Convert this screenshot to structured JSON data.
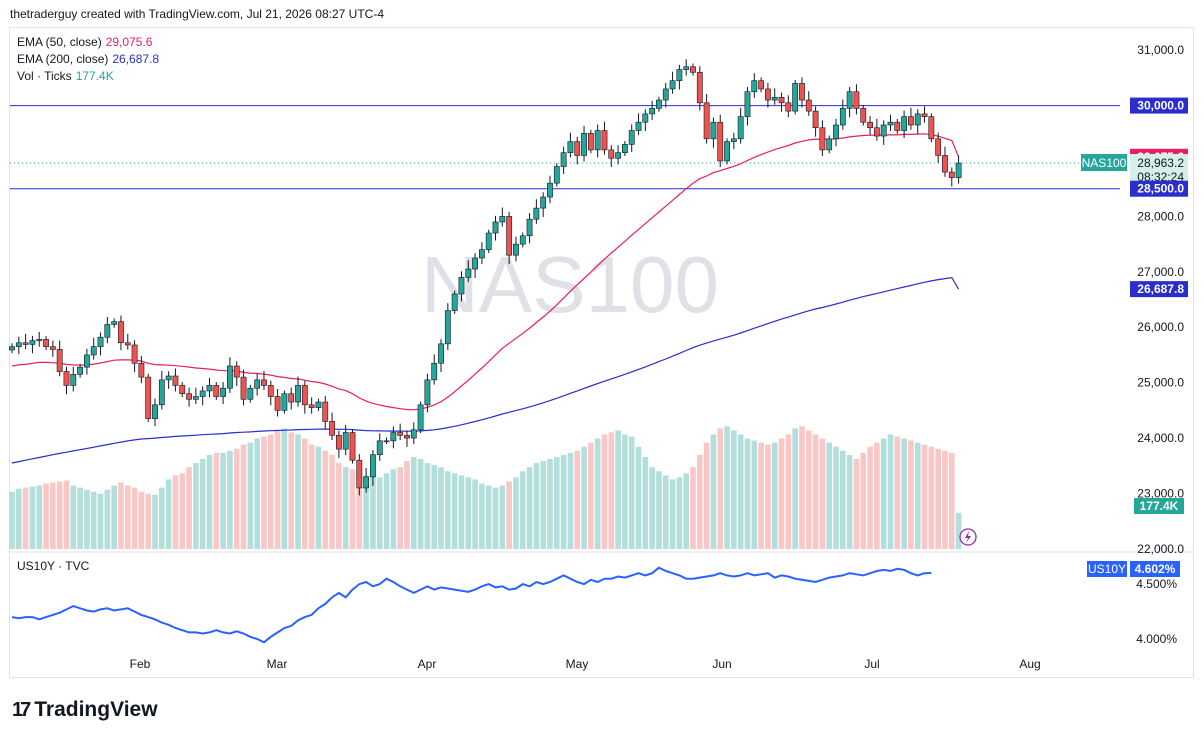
{
  "header": {
    "attribution": "thetraderguy created with TradingView.com, Jul 21, 2026 08:27 UTC-4"
  },
  "legend": [
    {
      "label": "EMA (50, close)",
      "value": "29,075.6",
      "color": "#e91e63"
    },
    {
      "label": "EMA (200, close)",
      "value": "26,687.8",
      "color": "#2a2ecd"
    },
    {
      "label": "Vol · Ticks",
      "value": "177.4K",
      "color": "#26a69a"
    }
  ],
  "lower_legend": {
    "label": "US10Y · TVC"
  },
  "watermark": "NAS100",
  "brand": {
    "logo": "17",
    "name": "TradingView"
  },
  "colors": {
    "up": "#26a69a",
    "down": "#ef5350",
    "ema50": "#e91e63",
    "ema200": "#2a2ecd",
    "hline": "#2a2ecd",
    "vol_up": "#b2dfdb",
    "vol_down": "#f8c7c6",
    "us10y": "#2962ff"
  },
  "chart_data": {
    "type": "candlestick",
    "symbol": "NAS100",
    "x_ticks": [
      "Feb",
      "Mar",
      "Apr",
      "May",
      "Jun",
      "Jul",
      "Aug"
    ],
    "y_ticks": [
      "31,000.0",
      "28,000.0",
      "27,000.0",
      "26,000.0",
      "25,000.0",
      "24,000.0",
      "23,000.0",
      "22,000.0"
    ],
    "y_range": [
      21980,
      31400
    ],
    "horizontal_lines": [
      30000,
      28500
    ],
    "price_labels": [
      {
        "text": "30,000.0",
        "value": 30000,
        "kind": "hline"
      },
      {
        "text": "29,075.6",
        "value": 29075.6,
        "kind": "ema50"
      },
      {
        "text": "28,963.2",
        "value": 28963.2,
        "kind": "last",
        "symbol_tag": "NAS100",
        "countdown": "08:32:24"
      },
      {
        "text": "28,500.0",
        "value": 28500,
        "kind": "hline"
      },
      {
        "text": "26,687.8",
        "value": 26687.8,
        "kind": "ema200"
      },
      {
        "text": "177.4K",
        "kind": "volume"
      }
    ],
    "closes": [
      25650,
      25720,
      25690,
      25760,
      25780,
      25650,
      25600,
      25200,
      24950,
      25150,
      25280,
      25500,
      25650,
      25820,
      26050,
      26100,
      25720,
      25680,
      25350,
      25100,
      24350,
      24600,
      25050,
      25120,
      24950,
      24800,
      24700,
      24750,
      24850,
      24950,
      24750,
      24900,
      25300,
      25100,
      24700,
      24900,
      25050,
      24950,
      24750,
      24500,
      24800,
      24650,
      24950,
      24600,
      24550,
      24650,
      24300,
      24050,
      23800,
      24100,
      23600,
      23100,
      23300,
      23700,
      23950,
      23950,
      24100,
      24050,
      24000,
      24150,
      24600,
      25050,
      25350,
      25700,
      26300,
      26600,
      26900,
      27050,
      27250,
      27400,
      27700,
      27900,
      28000,
      27300,
      27500,
      27650,
      27950,
      28150,
      28350,
      28600,
      28900,
      29150,
      29350,
      29100,
      29500,
      29200,
      29550,
      29200,
      29050,
      29150,
      29300,
      29550,
      29700,
      29850,
      29950,
      30100,
      30300,
      30450,
      30650,
      30700,
      30600,
      30050,
      29400,
      29700,
      29000,
      29350,
      29400,
      29800,
      30250,
      30450,
      30300,
      30100,
      30150,
      30050,
      29900,
      30400,
      30100,
      29900,
      29600,
      29200,
      29400,
      29650,
      29950,
      30250,
      29950,
      29700,
      29600,
      29450,
      29650,
      29700,
      29550,
      29800,
      29650,
      29850,
      29800,
      29400,
      29100,
      28800,
      28700,
      28963
    ],
    "ema50": [
      25300,
      25320,
      25330,
      25350,
      25365,
      25365,
      25360,
      25350,
      25330,
      25320,
      25315,
      25320,
      25335,
      25355,
      25380,
      25405,
      25410,
      25410,
      25405,
      25390,
      25350,
      25325,
      25320,
      25315,
      25305,
      25295,
      25280,
      25265,
      25255,
      25245,
      25228,
      25215,
      25215,
      25210,
      25185,
      25172,
      25165,
      25155,
      25137,
      25110,
      25095,
      25075,
      25066,
      25044,
      25021,
      25005,
      24975,
      24935,
      24888,
      24857,
      24800,
      24725,
      24667,
      24626,
      24599,
      24570,
      24550,
      24530,
      24515,
      24510,
      24525,
      24555,
      24598,
      24657,
      24740,
      24835,
      24940,
      25045,
      25155,
      25265,
      25380,
      25500,
      25620,
      25710,
      25800,
      25890,
      25985,
      26085,
      26185,
      26290,
      26405,
      26525,
      26650,
      26765,
      26880,
      26995,
      27115,
      27230,
      27340,
      27445,
      27550,
      27660,
      27765,
      27870,
      27975,
      28080,
      28185,
      28290,
      28395,
      28500,
      28600,
      28680,
      28730,
      28790,
      28825,
      28865,
      28905,
      28950,
      29010,
      29065,
      29115,
      29160,
      29205,
      29245,
      29280,
      29325,
      29355,
      29380,
      29395,
      29390,
      29390,
      29400,
      29415,
      29435,
      29450,
      29460,
      29465,
      29465,
      29470,
      29470,
      29470,
      29480,
      29480,
      29485,
      29490,
      29470,
      29450,
      29410,
      29370,
      29075.6
    ],
    "ema200": [
      23550,
      23575,
      23600,
      23625,
      23650,
      23675,
      23700,
      23723,
      23745,
      23768,
      23790,
      23812,
      23835,
      23858,
      23882,
      23906,
      23927,
      23948,
      23967,
      23984,
      23990,
      24000,
      24010,
      24020,
      24030,
      24038,
      24045,
      24052,
      24060,
      24068,
      24074,
      24081,
      24092,
      24100,
      24105,
      24112,
      24120,
      24127,
      24133,
      24136,
      24142,
      24146,
      24152,
      24155,
      24158,
      24162,
      24162,
      24161,
      24158,
      24158,
      24153,
      24143,
      24135,
      24131,
      24129,
      24127,
      24126,
      24125,
      24124,
      24124,
      24129,
      24138,
      24150,
      24166,
      24188,
      24212,
      24240,
      24269,
      24299,
      24330,
      24364,
      24399,
      24435,
      24465,
      24496,
      24528,
      24562,
      24598,
      24636,
      24676,
      24718,
      24762,
      24808,
      24851,
      24897,
      24939,
      24985,
      25027,
      25067,
      25108,
      25150,
      25194,
      25239,
      25285,
      25331,
      25379,
      25427,
      25477,
      25528,
      25580,
      25630,
      25675,
      25713,
      25753,
      25786,
      25821,
      25857,
      25896,
      25938,
      25983,
      26025,
      26066,
      26107,
      26146,
      26183,
      26223,
      26261,
      26296,
      26329,
      26357,
      26387,
      26419,
      26452,
      26488,
      26521,
      26552,
      26582,
      26610,
      26639,
      26669,
      26697,
      26726,
      26754,
      26783,
      26811,
      26837,
      26859,
      26878,
      26895,
      26687.8
    ],
    "volume": [
      280,
      295,
      300,
      305,
      310,
      320,
      325,
      330,
      335,
      310,
      300,
      290,
      280,
      270,
      290,
      310,
      325,
      310,
      300,
      280,
      270,
      265,
      300,
      340,
      360,
      370,
      400,
      420,
      440,
      460,
      470,
      470,
      480,
      490,
      510,
      520,
      540,
      550,
      560,
      575,
      590,
      570,
      560,
      540,
      510,
      500,
      480,
      460,
      420,
      400,
      390,
      370,
      360,
      360,
      350,
      370,
      390,
      400,
      430,
      450,
      440,
      420,
      410,
      400,
      380,
      370,
      360,
      350,
      340,
      320,
      310,
      300,
      310,
      330,
      350,
      380,
      400,
      420,
      430,
      440,
      450,
      460,
      470,
      480,
      500,
      520,
      540,
      560,
      570,
      580,
      560,
      550,
      500,
      450,
      400,
      380,
      360,
      340,
      350,
      370,
      400,
      460,
      520,
      560,
      590,
      600,
      580,
      560,
      540,
      530,
      520,
      510,
      520,
      540,
      560,
      590,
      600,
      580,
      560,
      540,
      520,
      500,
      480,
      460,
      440,
      470,
      500,
      520,
      540,
      560,
      550,
      540,
      530,
      520,
      510,
      500,
      490,
      480,
      470,
      177.4
    ],
    "us10y_y_ticks": [
      "4.500%",
      "4.000%"
    ],
    "us10y_range": [
      3.9,
      4.72
    ],
    "us10y_last": "4.602%",
    "us10y": [
      4.2,
      4.19,
      4.2,
      4.2,
      4.18,
      4.2,
      4.22,
      4.24,
      4.27,
      4.3,
      4.28,
      4.26,
      4.25,
      4.27,
      4.28,
      4.26,
      4.27,
      4.28,
      4.25,
      4.22,
      4.2,
      4.18,
      4.15,
      4.13,
      4.1,
      4.08,
      4.06,
      4.06,
      4.05,
      4.06,
      4.08,
      4.06,
      4.05,
      4.07,
      4.05,
      4.02,
      4.0,
      3.97,
      4.02,
      4.06,
      4.1,
      4.12,
      4.17,
      4.2,
      4.22,
      4.28,
      4.32,
      4.38,
      4.42,
      4.38,
      4.45,
      4.5,
      4.52,
      4.48,
      4.5,
      4.55,
      4.52,
      4.48,
      4.45,
      4.42,
      4.45,
      4.48,
      4.45,
      4.47,
      4.46,
      4.45,
      4.44,
      4.43,
      4.45,
      4.48,
      4.5,
      4.47,
      4.48,
      4.45,
      4.46,
      4.5,
      4.48,
      4.52,
      4.5,
      4.52,
      4.55,
      4.58,
      4.55,
      4.52,
      4.5,
      4.54,
      4.52,
      4.55,
      4.55,
      4.57,
      4.56,
      4.58,
      4.6,
      4.58,
      4.6,
      4.65,
      4.62,
      4.6,
      4.58,
      4.55,
      4.55,
      4.56,
      4.57,
      4.58,
      4.6,
      4.58,
      4.57,
      4.58,
      4.6,
      4.58,
      4.59,
      4.6,
      4.56,
      4.58,
      4.57,
      4.55,
      4.54,
      4.53,
      4.52,
      4.54,
      4.56,
      4.57,
      4.58,
      4.6,
      4.59,
      4.58,
      4.6,
      4.62,
      4.63,
      4.62,
      4.64,
      4.63,
      4.6,
      4.58,
      4.6,
      4.602
    ]
  }
}
